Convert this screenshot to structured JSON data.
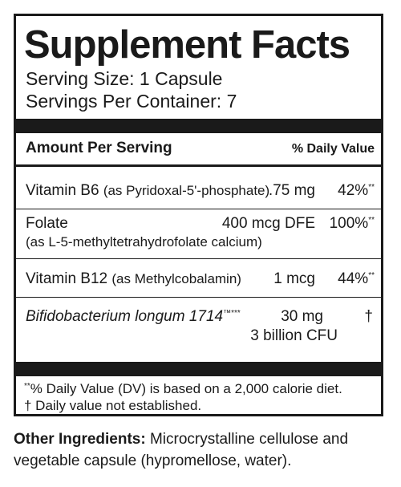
{
  "title": "Supplement Facts",
  "serving_size": "Serving Size: 1 Capsule",
  "servings_per_container": "Servings Per Container: 7",
  "header": {
    "amount_per_serving": "Amount Per Serving",
    "daily_value": "% Daily Value"
  },
  "nutrients": [
    {
      "name": "Vitamin B6",
      "source": "(as Pyridoxal-5'-phosphate)",
      "amount": ".75 mg",
      "dv": "42%",
      "dv_mark": "**"
    },
    {
      "name": "Folate",
      "source": "(as L-5-methyltetrahydrofolate calcium)",
      "amount": "400 mcg DFE",
      "dv": "100%",
      "dv_mark": "**"
    },
    {
      "name": "Vitamin B12",
      "source": "(as Methylcobalamin)",
      "amount": "1 mcg",
      "dv": "44%",
      "dv_mark": "**"
    },
    {
      "name": "Bifidobacterium longum 1714",
      "name_mark": "™***",
      "amount": "30 mg",
      "amount_2": "3 billion CFU",
      "dv": "†"
    }
  ],
  "footnotes": {
    "dv_mark": "**",
    "dv_note": "% Daily Value (DV) is based on a 2,000 calorie diet.",
    "not_established": "† Daily value not established."
  },
  "other_ingredients": {
    "label": "Other Ingredients:",
    "text": " Microcrystalline cellulose and vegetable capsule (hypromellose, water)."
  }
}
